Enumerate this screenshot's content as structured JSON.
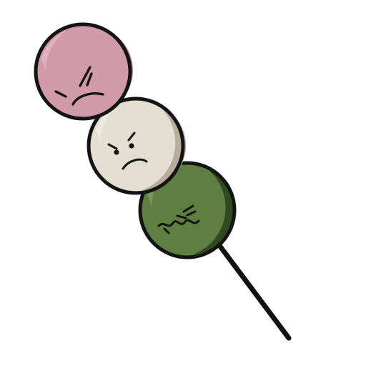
{
  "illustration": {
    "subject": "hanami-dango-on-skewer",
    "skewer_color": "#111111",
    "outline_color": "#141414",
    "dango": [
      {
        "name": "pink",
        "fill": "#d19aab",
        "highlight": "#e3b6c3",
        "shadow": "#b07487",
        "face": "angry"
      },
      {
        "name": "white",
        "fill": "#e4ddd2",
        "highlight": "#f0ebe3",
        "shadow": "#b9ac9c",
        "face": "annoyed"
      },
      {
        "name": "green",
        "fill": "#5f7f42",
        "highlight": "#7b9a5a",
        "shadow": "#2f4a1e",
        "face": "grimacing"
      }
    ]
  }
}
